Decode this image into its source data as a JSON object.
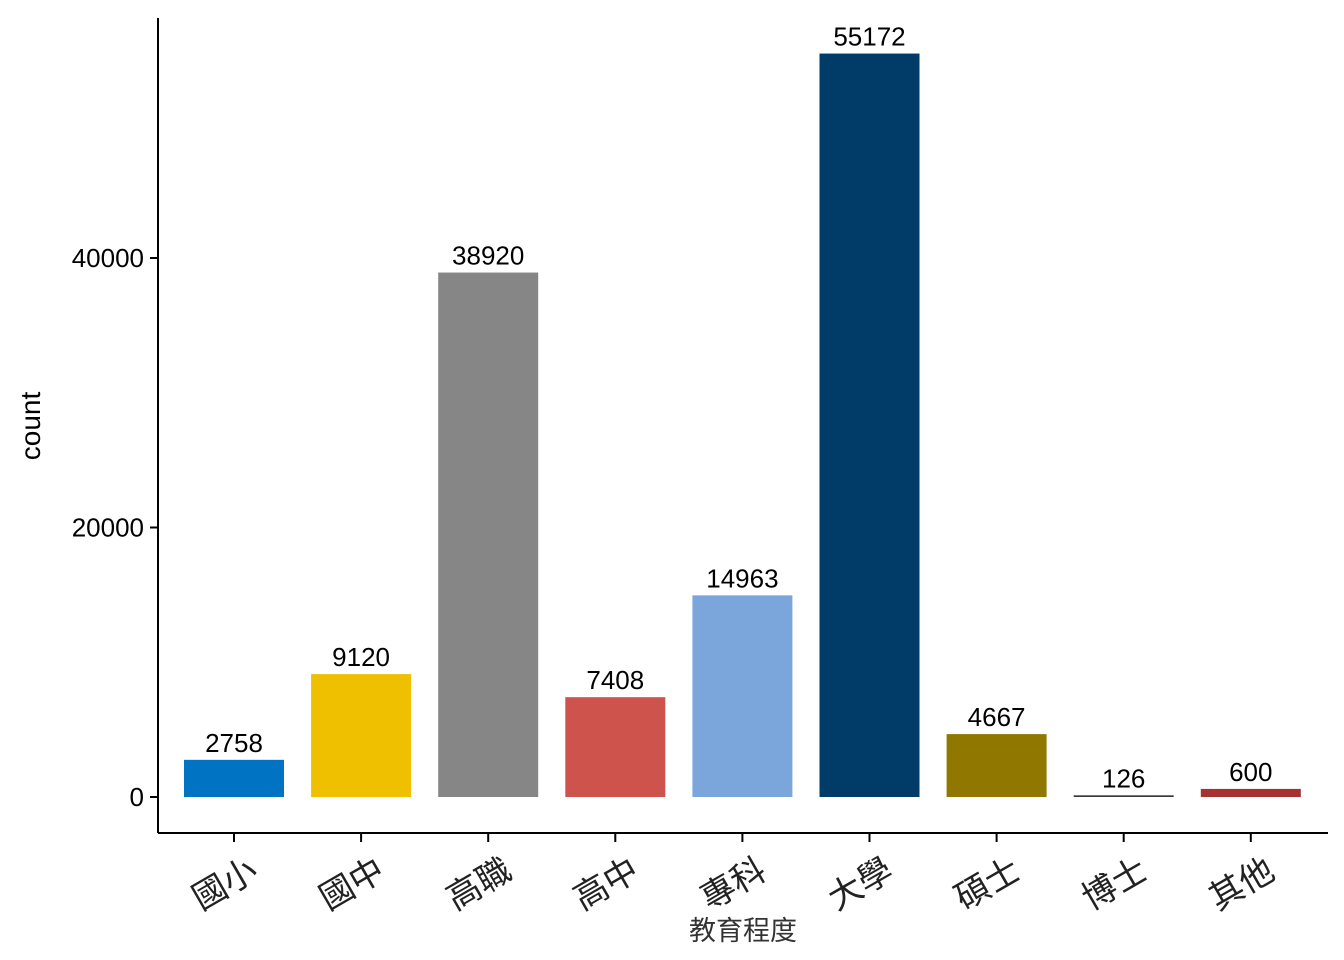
{
  "chart_data": {
    "type": "bar",
    "xlabel": "教育程度",
    "ylabel": "count",
    "ylim": [
      0,
      57000
    ],
    "yticks": [
      0,
      20000,
      40000
    ],
    "grid": false,
    "legend": "none",
    "categories": [
      "國小",
      "國中",
      "高職",
      "高中",
      "專科",
      "大學",
      "碩士",
      "博士",
      "其他"
    ],
    "values": [
      2758,
      9120,
      38920,
      7408,
      14963,
      55172,
      4667,
      126,
      600
    ],
    "colors": [
      "#0073C2",
      "#EFC000",
      "#868686",
      "#CD534C",
      "#7AA6DC",
      "#003C67",
      "#8F7700",
      "#3B3B3B",
      "#A73030"
    ]
  }
}
